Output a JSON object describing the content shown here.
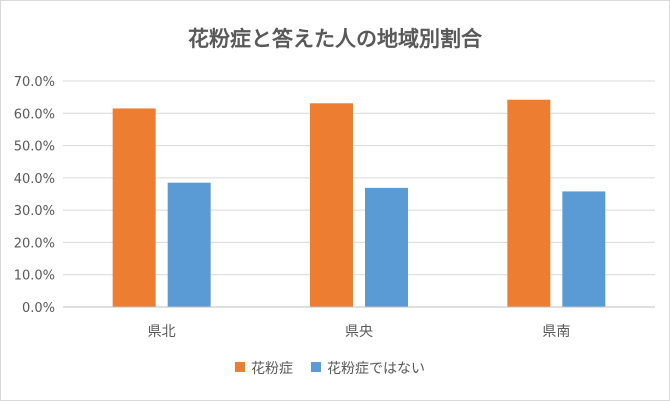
{
  "chart_data": {
    "type": "bar",
    "title": "花粉症と答えた人の地域別割合",
    "xlabel": "",
    "ylabel": "",
    "categories": [
      "県北",
      "県央",
      "県南"
    ],
    "ylim": [
      0,
      70
    ],
    "yticks": [
      "0.0%",
      "10.0%",
      "20.0%",
      "30.0%",
      "40.0%",
      "50.0%",
      "60.0%",
      "70.0%"
    ],
    "grid": true,
    "legend_position": "bottom",
    "series": [
      {
        "name": "花粉症",
        "values": [
          61.5,
          63.1,
          64.2
        ],
        "color": "#ED7D31"
      },
      {
        "name": "花粉症ではない",
        "values": [
          38.5,
          36.9,
          35.8
        ],
        "color": "#5B9BD5"
      }
    ]
  }
}
